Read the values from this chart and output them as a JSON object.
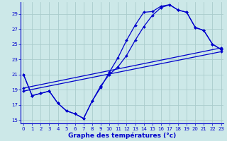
{
  "xlabel": "Graphe des températures (°c)",
  "bg_color": "#cce8e8",
  "line_color": "#0000cc",
  "grid_color": "#aacccc",
  "ylim": [
    14.5,
    30.5
  ],
  "xlim": [
    -0.3,
    23.3
  ],
  "yticks": [
    15,
    17,
    19,
    21,
    23,
    25,
    27,
    29
  ],
  "xticks": [
    0,
    1,
    2,
    3,
    4,
    5,
    6,
    7,
    8,
    9,
    10,
    11,
    12,
    13,
    14,
    15,
    16,
    17,
    18,
    19,
    20,
    21,
    22,
    23
  ],
  "series": [
    {
      "x": [
        0,
        1,
        2,
        3,
        4,
        5,
        6,
        7,
        8,
        9,
        10,
        11,
        12,
        13,
        14,
        15,
        16,
        17,
        18,
        19,
        20,
        21,
        22,
        23
      ],
      "y": [
        21,
        18.2,
        18.5,
        18.8,
        17.2,
        16.2,
        15.8,
        15.2,
        17.5,
        19.3,
        21.3,
        23.2,
        25.5,
        27.5,
        29.2,
        29.3,
        30.0,
        30.2,
        29.5,
        29.2,
        27.2,
        26.8,
        25.0,
        24.3
      ]
    },
    {
      "x": [
        0,
        1,
        2,
        3,
        4,
        5,
        6,
        7,
        8,
        9,
        10,
        11,
        12,
        13,
        14,
        15,
        16,
        17,
        18,
        19,
        20,
        21,
        22,
        23
      ],
      "y": [
        21,
        18.2,
        18.5,
        18.8,
        17.2,
        16.2,
        15.8,
        15.2,
        17.5,
        19.5,
        21.0,
        22.0,
        23.5,
        25.5,
        27.3,
        28.8,
        29.8,
        30.2,
        29.5,
        29.2,
        27.2,
        26.8,
        25.0,
        24.3
      ]
    },
    {
      "x": [
        0,
        23
      ],
      "y": [
        18.8,
        24.0
      ]
    },
    {
      "x": [
        0,
        23
      ],
      "y": [
        19.2,
        24.5
      ]
    }
  ]
}
